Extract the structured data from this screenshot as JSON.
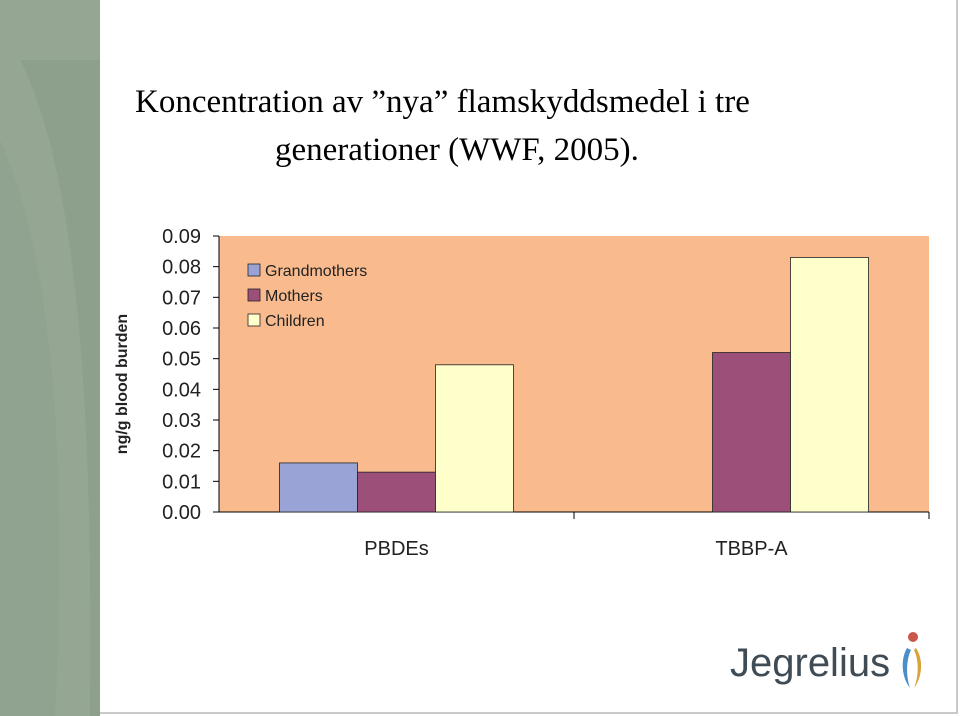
{
  "slide": {
    "title_line_1": "Koncentration av ”nya” flamskyddsmedel i tre",
    "title_line_2": "generationer (WWF, 2005)."
  },
  "chart_data": {
    "type": "bar",
    "categories": [
      "PBDEs",
      "TBBP-A"
    ],
    "series": [
      {
        "name": "Grandmothers",
        "values": [
          0.016,
          null
        ],
        "color": "#99a3d6"
      },
      {
        "name": "Mothers",
        "values": [
          0.013,
          0.052
        ],
        "color": "#9c4f78"
      },
      {
        "name": "Children",
        "values": [
          0.048,
          0.083
        ],
        "color": "#ffffcc"
      }
    ],
    "ylabel": "ng/g blood burden",
    "ylim": [
      0,
      0.09
    ],
    "yticks": [
      "0.00",
      "0.01",
      "0.02",
      "0.03",
      "0.04",
      "0.05",
      "0.06",
      "0.07",
      "0.08",
      "0.09"
    ],
    "plot_background": "#f9bb8d",
    "legend_position": "top-left inside"
  },
  "logo": {
    "text": "Jegrelius"
  },
  "theme": {
    "band_color": "#9aaa98",
    "band_shade": "#7f9481"
  }
}
